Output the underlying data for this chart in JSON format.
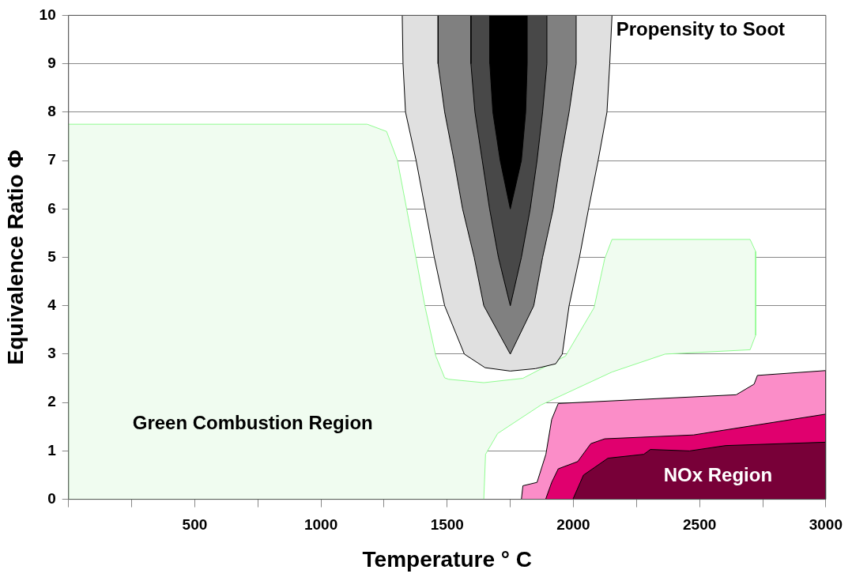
{
  "chart_data": {
    "type": "area",
    "xlabel": "Temperature ° C",
    "ylabel": "Equivalence Ratio Φ",
    "xlim": [
      0,
      3000
    ],
    "xticks": [
      {
        "value": 0,
        "label": null
      },
      {
        "value": 250,
        "label": null
      },
      500,
      {
        "value": 750,
        "label": null
      },
      1000,
      {
        "value": 1250,
        "label": null
      },
      1500,
      {
        "value": 1750,
        "label": null
      },
      2000,
      {
        "value": 2250,
        "label": null
      },
      2500,
      {
        "value": 2750,
        "label": null
      },
      3000
    ],
    "ylim": [
      0,
      10
    ],
    "yticks": [
      0,
      1,
      2,
      3,
      4,
      5,
      6,
      7,
      8,
      9,
      10
    ],
    "grid": "y",
    "legend": false,
    "series": [
      {
        "name": "Green Combustion Region",
        "color": "#f0fcf0",
        "x": [
          0,
          0,
          1183,
          1260,
          1303,
          1377,
          1413,
          1455,
          1490,
          1506,
          1645,
          1800,
          1969,
          2082,
          2124,
          2153,
          2700,
          2722,
          2722,
          2700,
          2363,
          2153,
          1872,
          1700,
          1652,
          1645,
          0
        ],
        "values": [
          0,
          7.75,
          7.75,
          7.6,
          7.0,
          4.97,
          3.96,
          2.96,
          2.51,
          2.48,
          2.41,
          2.5,
          2.96,
          3.96,
          4.97,
          5.37,
          5.37,
          5.12,
          3.39,
          3.09,
          3.0,
          2.63,
          1.95,
          1.36,
          0.93,
          0,
          0
        ]
      },
      {
        "name": "Propensity to Soot",
        "color": "#e0e0e0",
        "x": [
          1322,
          1325,
          1335,
          1377,
          1413,
          1449,
          1490,
          1568,
          1650,
          1750,
          1850,
          1930,
          1956,
          1983,
          2024,
          2060,
          2098,
          2133,
          2144,
          2153,
          1322
        ],
        "values": [
          10,
          9,
          8,
          7,
          6,
          5,
          4,
          3,
          2.72,
          2.65,
          2.7,
          2.8,
          3,
          4,
          5,
          6,
          7,
          8,
          9,
          10,
          10
        ]
      },
      {
        "color": "#808080",
        "x": [
          1464,
          1464,
          1490,
          1527,
          1561,
          1607,
          1645,
          1750,
          1843,
          1878,
          1920,
          1949,
          1983,
          2011,
          2011,
          1464
        ],
        "values": [
          10,
          9,
          8,
          7,
          6,
          5,
          4,
          3,
          4,
          5,
          6,
          7,
          8,
          9,
          10,
          10
        ]
      },
      {
        "color": "#484848",
        "x": [
          1594,
          1594,
          1610,
          1639,
          1668,
          1703,
          1750,
          1794,
          1829,
          1856,
          1878,
          1895,
          1895,
          1594
        ],
        "values": [
          10,
          9,
          8,
          7,
          6,
          5,
          4,
          5,
          6,
          7,
          8,
          9,
          10,
          10
        ]
      },
      {
        "color": "#000000",
        "x": [
          1669,
          1669,
          1681,
          1710,
          1750,
          1794,
          1811,
          1817,
          1817,
          1669
        ],
        "values": [
          10,
          9,
          8,
          7,
          6,
          7,
          8,
          9,
          10,
          10
        ]
      },
      {
        "color": "#fb8dc8",
        "x": [
          1794,
          1800,
          1856,
          1891,
          1914,
          1940,
          2645,
          2716,
          2729,
          3000,
          3000,
          1794
        ],
        "values": [
          0,
          0.28,
          0.35,
          0.93,
          1.65,
          1.98,
          2.16,
          2.38,
          2.56,
          2.66,
          0,
          0
        ]
      },
      {
        "color": "#e0006e",
        "x": [
          1890,
          1914,
          1940,
          2017,
          2069,
          2124,
          2476,
          3000,
          3000,
          1890
        ],
        "values": [
          0,
          0.35,
          0.63,
          0.78,
          1.15,
          1.25,
          1.33,
          1.76,
          0,
          0
        ]
      },
      {
        "name": "NOx Region",
        "color": "#780038",
        "x": [
          1998,
          2040,
          2137,
          2279,
          2305,
          2460,
          2603,
          3000,
          3000,
          1998
        ],
        "values": [
          0,
          0.5,
          0.85,
          0.93,
          1.03,
          1.0,
          1.11,
          1.18,
          0,
          0
        ]
      }
    ]
  }
}
